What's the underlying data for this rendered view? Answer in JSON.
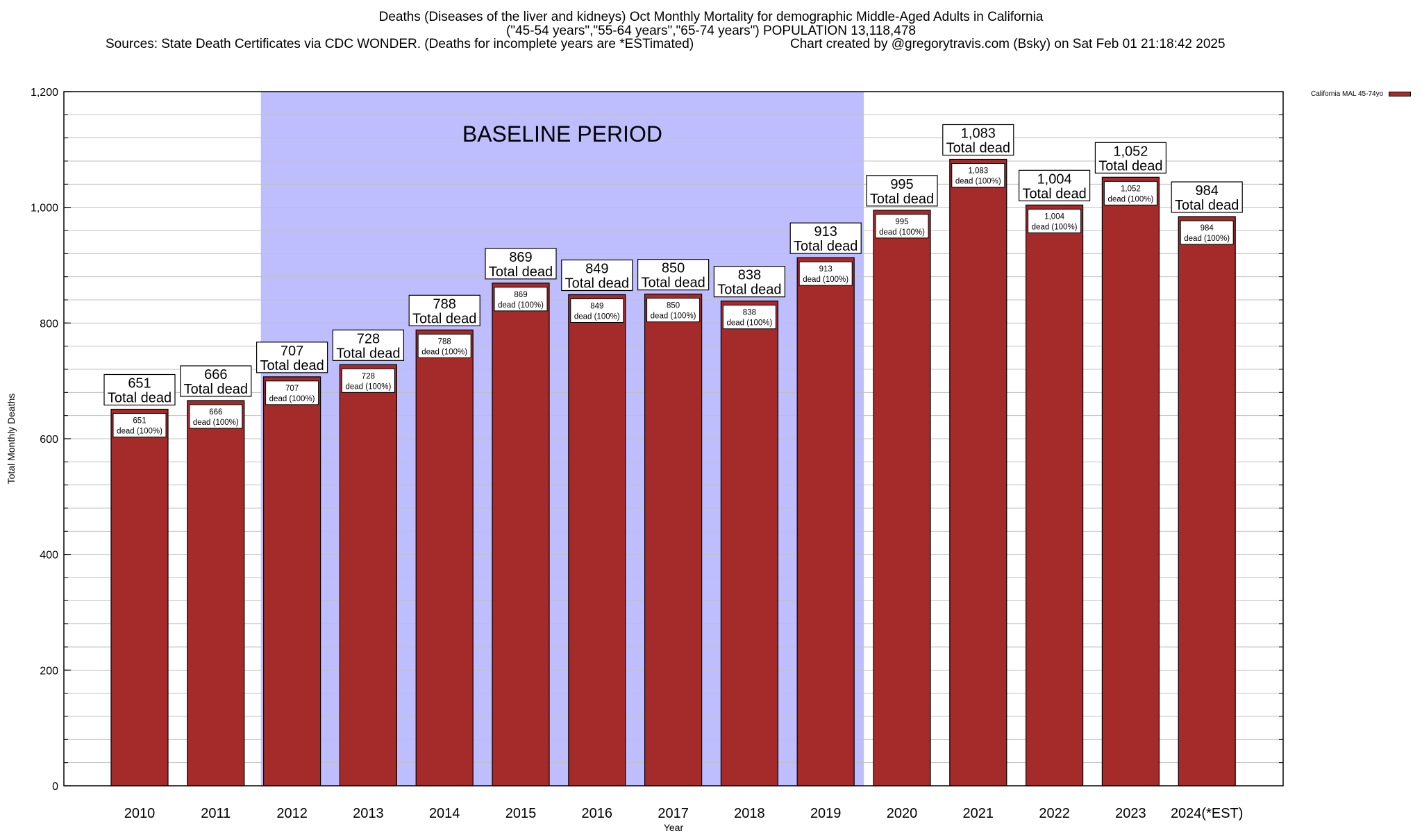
{
  "header": {
    "title_line1": "Deaths (Diseases of the liver and kidneys) Oct Monthly Mortality for demographic Middle-Aged Adults in California",
    "title_line2": "(\"45-54 years\",\"55-64 years\",\"65-74 years\") POPULATION 13,118,478",
    "sources": "Sources: State Death Certificates via CDC WONDER. (Deaths for incomplete years are *ESTimated)",
    "credit": "Chart created by @gregorytravis.com (Bsky) on Sat Feb 01 21:18:42 2025"
  },
  "colors": {
    "bar": "#a52a2a",
    "baseline_region": "#bebeff",
    "grid": "#c0c0c0"
  },
  "chart_data": {
    "type": "bar",
    "title": "Deaths (Diseases of the liver and kidneys) Oct Monthly Mortality for demographic Middle-Aged Adults in California",
    "xlabel": "Year",
    "ylabel": "Total Monthly Deaths",
    "ylim": [
      0,
      1200
    ],
    "yticks": [
      0,
      200,
      400,
      600,
      800,
      1000,
      1200
    ],
    "ytick_labels": [
      "0",
      "200",
      "400",
      "600",
      "800",
      "1,000",
      "1,200"
    ],
    "minor_grid_step": 40,
    "grid": true,
    "legend": {
      "position": "top-right",
      "entries": [
        "California MAL 45-74yo"
      ]
    },
    "categories": [
      "2010",
      "2011",
      "2012",
      "2013",
      "2014",
      "2015",
      "2016",
      "2017",
      "2018",
      "2019",
      "2020",
      "2021",
      "2022",
      "2023",
      "2024(*EST)"
    ],
    "series": [
      {
        "name": "California MAL 45-74yo",
        "values": [
          651,
          666,
          707,
          728,
          788,
          869,
          849,
          850,
          838,
          913,
          995,
          1083,
          1004,
          1052,
          984
        ]
      }
    ],
    "value_labels": [
      "651",
      "666",
      "707",
      "728",
      "788",
      "869",
      "849",
      "850",
      "838",
      "913",
      "995",
      "1,083",
      "1,004",
      "1,052",
      "984"
    ],
    "top_label_suffix": "Total dead",
    "inner_label_suffix": "dead (100%)",
    "annotation": {
      "text": "BASELINE PERIOD",
      "from_category": "2012",
      "to_category": "2019"
    }
  }
}
